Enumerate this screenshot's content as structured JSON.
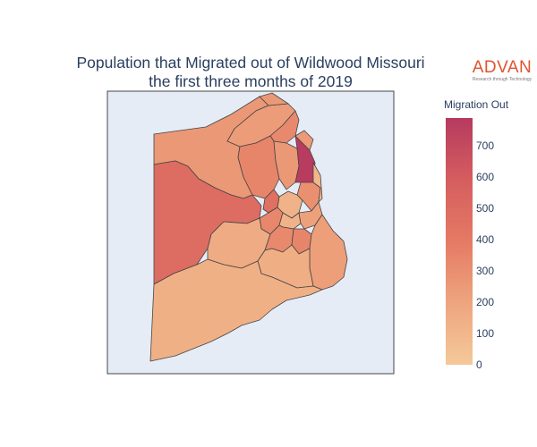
{
  "title_line1": "Population that Migrated out of Wildwood Missouri",
  "title_line2": "the first three months of 2019",
  "logo": {
    "word": "ADVAN",
    "tagline": "Research through Technology"
  },
  "colorbar": {
    "title": "Migration Out",
    "ticks": [
      "700",
      "600",
      "500",
      "400",
      "300",
      "200",
      "100",
      "0"
    ],
    "scale": [
      "#f4c99a",
      "#eea57e",
      "#e57a64",
      "#d55d5f",
      "#b63a5f"
    ]
  },
  "map": {
    "background": "#e5ecf6",
    "border_color": "#444444",
    "region_values": [
      260,
      240,
      330,
      500,
      350,
      260,
      790,
      120,
      300,
      470,
      340,
      100,
      120,
      220,
      160,
      330,
      350,
      230,
      150,
      140,
      250,
      260
    ]
  }
}
